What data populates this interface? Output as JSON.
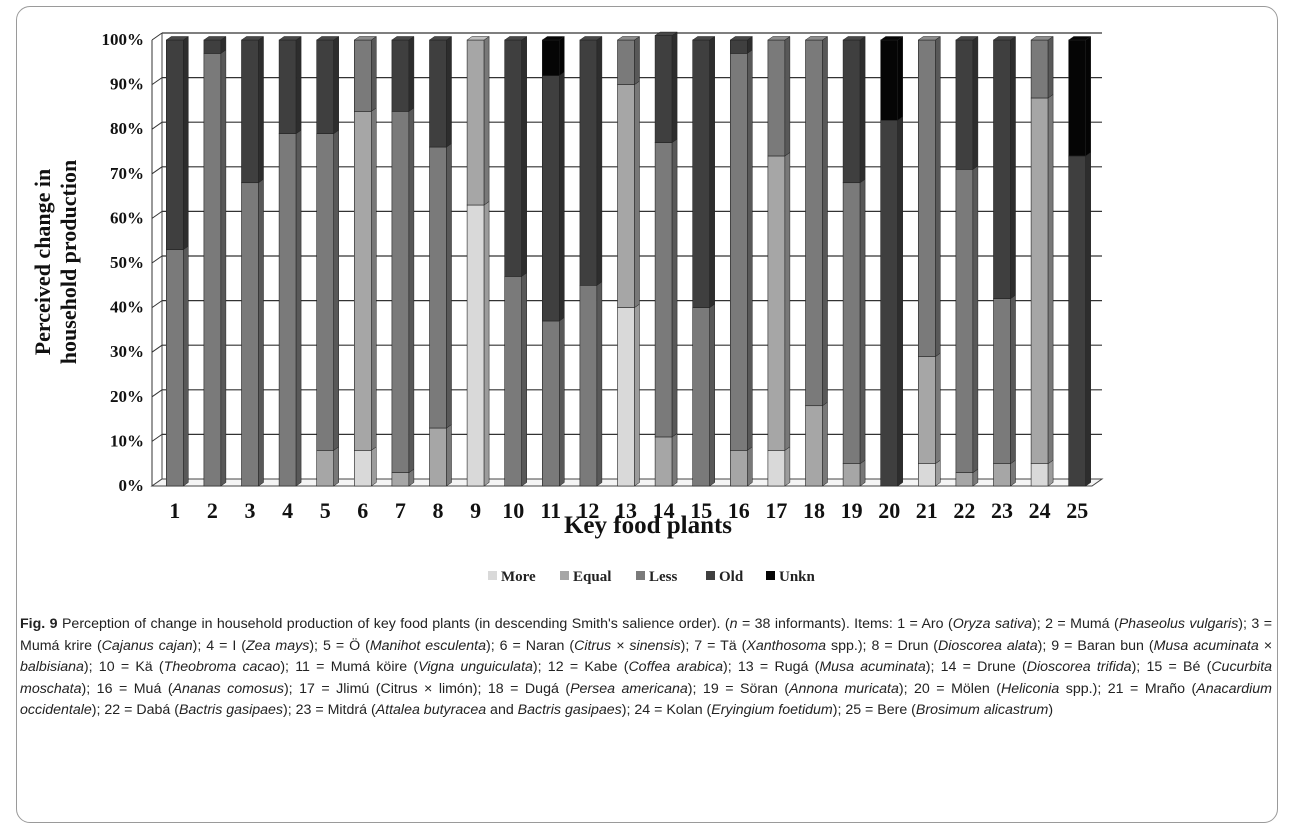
{
  "figure": {
    "caption_label": "Fig. 9",
    "caption_text": "Perception of change in household production of key food plants (in descending Smith's salience order). (n = 38 informants). Items: 1 = Aro (Oryza sativa); 2 = Mumá (Phaseolus vulgaris); 3 = Mumá krire (Cajanus cajan); 4 = I (Zea mays); 5 = Ö (Manihot esculenta); 6 = Naran (Citrus × sinensis); 7 = Tä (Xanthosoma spp.); 8 = Drun (Dioscorea alata); 9 = Baran bun (Musa acuminata × balbisiana); 10 = Kä (Theobroma cacao); 11 = Mumá köire (Vigna unguiculata); 12 = Kabe (Coffea arabica); 13 = Rugá (Musa acuminata); 14 = Drune (Dioscorea trifida); 15 = Bé (Cucurbita moschata); 16 = Muá (Ananas comosus); 17 = Jlimú (Citrus × limón); 18 = Dugá (Persea americana); 19 = Söran (Annona muricata); 20 = Mölen (Heliconia spp.); 21 = Mraño (Anacardium occidentale); 22 = Dabá (Bactris gasipaes); 23 = Mitdrá (Attalea butyracea and Bactris gasipaes); 24 = Kolan (Eryingium foetidum); 25 = Bere (Brosimum alicastrum)"
  },
  "chart_data": {
    "type": "bar",
    "stacked": true,
    "percent": true,
    "title": "",
    "xlabel": "Key food plants",
    "ylabel_lines": [
      "Perceived change in",
      "household production"
    ],
    "ylim": [
      0,
      100
    ],
    "yticks": [
      "0%",
      "10%",
      "20%",
      "30%",
      "40%",
      "50%",
      "60%",
      "70%",
      "80%",
      "90%",
      "100%"
    ],
    "grid": true,
    "legend_position": "bottom",
    "categories": [
      "1",
      "2",
      "3",
      "4",
      "5",
      "6",
      "7",
      "8",
      "9",
      "10",
      "11",
      "12",
      "13",
      "14",
      "15",
      "16",
      "17",
      "18",
      "19",
      "20",
      "21",
      "22",
      "23",
      "24",
      "25"
    ],
    "series": [
      {
        "name": "More",
        "color": "#d9d9d9",
        "values": [
          0,
          0,
          0,
          0,
          0,
          8,
          0,
          0,
          63,
          0,
          0,
          0,
          40,
          0,
          0,
          0,
          8,
          0,
          0,
          0,
          5,
          0,
          0,
          5,
          0
        ]
      },
      {
        "name": "Equal",
        "color": "#a6a6a6",
        "values": [
          0,
          0,
          0,
          0,
          8,
          76,
          3,
          13,
          37,
          0,
          0,
          0,
          50,
          11,
          0,
          8,
          66,
          18,
          5,
          0,
          24,
          3,
          5,
          82,
          0
        ]
      },
      {
        "name": "Less",
        "color": "#7a7a7a",
        "values": [
          53,
          97,
          68,
          79,
          71,
          16,
          81,
          63,
          0,
          47,
          37,
          45,
          10,
          66,
          40,
          89,
          26,
          82,
          63,
          0,
          71,
          68,
          37,
          13,
          0
        ]
      },
      {
        "name": "Old",
        "color": "#3f3f3f",
        "values": [
          47,
          3,
          32,
          21,
          21,
          0,
          16,
          24,
          0,
          53,
          55,
          55,
          0,
          24,
          60,
          3,
          0,
          0,
          32,
          82,
          0,
          29,
          58,
          0,
          74
        ]
      },
      {
        "name": "Unkn",
        "color": "#050505",
        "values": [
          0,
          0,
          0,
          0,
          0,
          0,
          0,
          0,
          0,
          0,
          8,
          0,
          0,
          0,
          0,
          0,
          0,
          0,
          0,
          18,
          0,
          0,
          0,
          0,
          26
        ]
      }
    ]
  }
}
